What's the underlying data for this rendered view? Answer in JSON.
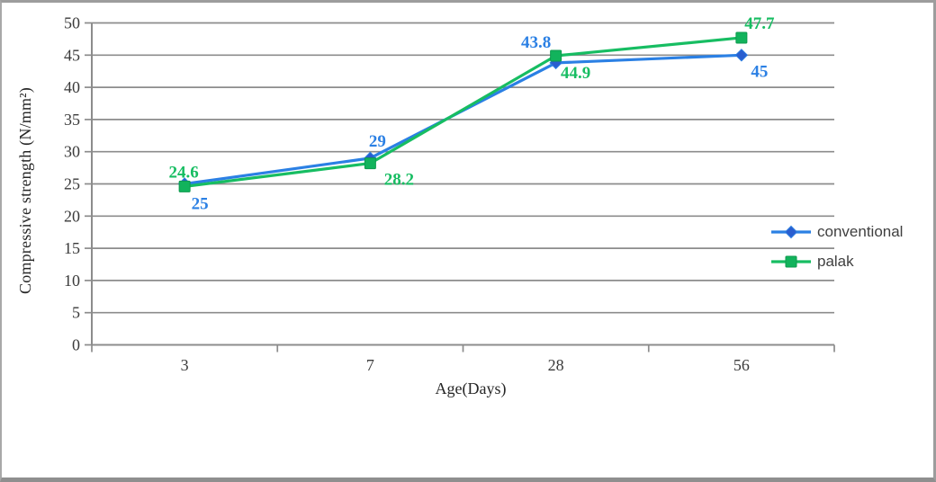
{
  "chart_data": {
    "type": "line",
    "title": "",
    "categories": [
      "3",
      "7",
      "28",
      "56"
    ],
    "series": [
      {
        "name": "conventional",
        "values": [
          25,
          29,
          43.8,
          45
        ],
        "data_labels": [
          "25",
          "29",
          "43.8",
          "45"
        ],
        "color": "#2b80e4",
        "marker": "diamond",
        "marker_fill": "#2a5ecf",
        "marker_stroke": "#2b7de0"
      },
      {
        "name": "palak",
        "values": [
          24.6,
          28.2,
          44.9,
          47.7
        ],
        "data_labels": [
          "24.6",
          "28.2",
          "44.9",
          "47.7"
        ],
        "color": "#17bd62",
        "marker": "square",
        "marker_fill": "#12b35c",
        "marker_stroke": "#0e9a4e"
      }
    ],
    "xlabel": "Age(Days)",
    "ylabel": "Compressive strength (N/mm²)",
    "ylim": [
      0,
      50
    ],
    "ytick_step": 5,
    "yticks": [
      "0",
      "5",
      "10",
      "15",
      "20",
      "25",
      "30",
      "35",
      "40",
      "45",
      "50"
    ],
    "grid": true,
    "legend_position": "right",
    "axis_color": "#8c8c8c",
    "tick_label_color": "#3a3a3a",
    "data_label_font_weight": "bold"
  }
}
